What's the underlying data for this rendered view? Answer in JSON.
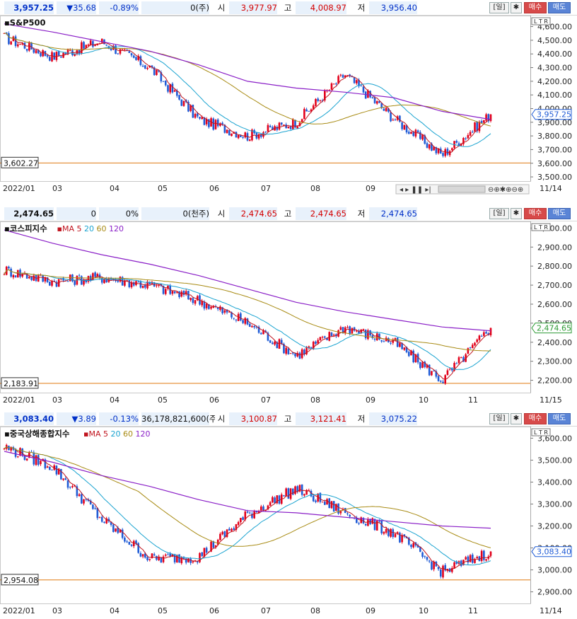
{
  "panels": [
    {
      "id": "sp500",
      "header": {
        "price": "3,957.25",
        "change": "▼35.68",
        "change_pct": "-0.89%",
        "volume": "0(주)",
        "open_label": "시",
        "open": "3,977.97",
        "high_label": "고",
        "high": "4,008.97",
        "low_label": "저",
        "low": "3,956.40",
        "period": "[일]",
        "buy": "매수",
        "sell": "매도"
      },
      "chart_label": "S&P500",
      "ma_legend": null,
      "ltr": "L T R",
      "last_price_tag": "3,957.25",
      "support_tag": "3,602.27",
      "date_end": "11/14",
      "x_months": [
        "2022/01",
        "03",
        "04",
        "05",
        "06",
        "07",
        "08",
        "09",
        "10",
        "11"
      ],
      "y_ticks": [
        "4,600.00",
        "4,500.00",
        "4,400.00",
        "4,300.00",
        "4,200.00",
        "4,100.00",
        "4,000.00",
        "3,900.00",
        "3,800.00",
        "3,700.00",
        "3,600.00",
        "3,500.00"
      ]
    },
    {
      "id": "kospi",
      "header": {
        "price": "2,474.65",
        "change": "0",
        "change_pct": "0%",
        "volume": "0(천주)",
        "open_label": "시",
        "open": "2,474.65",
        "high_label": "고",
        "high": "2,474.65",
        "low_label": "저",
        "low": "2,474.65",
        "period": "[일]",
        "buy": "매수",
        "sell": "매도"
      },
      "chart_label": "코스피지수",
      "ma_legend": {
        "title": "MA",
        "items": [
          "5",
          "20",
          "60",
          "120"
        ]
      },
      "ltr": "L T R",
      "last_price_tag": "2,474.65",
      "support_tag": "2,183.91",
      "date_end": "11/15",
      "x_months": [
        "2022/01",
        "03",
        "04",
        "05",
        "06",
        "07",
        "08",
        "09",
        "10",
        "11"
      ],
      "y_ticks": [
        "3,000.00",
        "2,900.00",
        "2,800.00",
        "2,700.00",
        "2,600.00",
        "2,500.00",
        "2,400.00",
        "2,300.00",
        "2,200.00"
      ]
    },
    {
      "id": "shanghai",
      "header": {
        "price": "3,083.40",
        "change": "▼3.89",
        "change_pct": "-0.13%",
        "volume": "36,178,821,600(주)",
        "open_label": "시",
        "open": "3,100.87",
        "high_label": "고",
        "high": "3,121.41",
        "low_label": "저",
        "low": "3,075.22",
        "period": "[일]",
        "buy": "매수",
        "sell": "매도"
      },
      "chart_label": "중국상해종합지수",
      "ma_legend": {
        "title": "MA",
        "items": [
          "5",
          "20",
          "60",
          "120"
        ]
      },
      "ltr": "L T R",
      "last_price_tag": "3,083.40",
      "support_tag": "2,954.08",
      "date_end": "11/14",
      "x_months": [
        "2022/01",
        "03",
        "04",
        "05",
        "06",
        "07",
        "08",
        "09",
        "10",
        "11"
      ],
      "y_ticks": [
        "3,600.00",
        "3,500.00",
        "3,400.00",
        "3,300.00",
        "3,200.00",
        "3,100.00",
        "3,000.00",
        "2,900.00"
      ]
    }
  ],
  "colors": {
    "up": "#e3001b",
    "down": "#1f5bd6",
    "ma5": "#c0141e",
    "ma20": "#1aa3d0",
    "ma60": "#a88b14",
    "ma120": "#8a1fc7",
    "support": "#e07a10",
    "grid": "#d6d6d6"
  },
  "chart_data": [
    {
      "type": "candlestick",
      "title": "S&P500",
      "ylim": [
        3490,
        4660
      ],
      "x": [
        "2022-01",
        "2022-02",
        "2022-03",
        "2022-04",
        "2022-05",
        "2022-06",
        "2022-07",
        "2022-08",
        "2022-09",
        "2022-10",
        "2022-11"
      ],
      "series": [
        {
          "name": "close",
          "values": [
            4520,
            4380,
            4490,
            4300,
            3920,
            3800,
            3900,
            4250,
            3930,
            3660,
            3957.25
          ]
        },
        {
          "name": "MA 120",
          "values": [
            4620,
            4560,
            4490,
            4420,
            4320,
            4200,
            4150,
            4120,
            4080,
            3980,
            3920
          ]
        }
      ],
      "support_line": 3602.27,
      "last": 3957.25
    },
    {
      "type": "candlestick",
      "title": "코스피지수",
      "ylim": [
        2150,
        3020
      ],
      "x": [
        "2022-01",
        "2022-02",
        "2022-03",
        "2022-04",
        "2022-05",
        "2022-06",
        "2022-07",
        "2022-08",
        "2022-09",
        "2022-10",
        "2022-11"
      ],
      "series": [
        {
          "name": "close",
          "values": [
            2780,
            2720,
            2740,
            2700,
            2620,
            2500,
            2330,
            2480,
            2400,
            2200,
            2474.65
          ]
        },
        {
          "name": "MA 120",
          "values": [
            2990,
            2920,
            2860,
            2810,
            2750,
            2680,
            2610,
            2560,
            2520,
            2480,
            2460
          ]
        }
      ],
      "support_line": 2183.91,
      "last": 2474.65
    },
    {
      "type": "candlestick",
      "title": "중국상해종합지수",
      "ylim": [
        2860,
        3640
      ],
      "x": [
        "2022-01",
        "2022-02",
        "2022-03",
        "2022-04",
        "2022-05",
        "2022-06",
        "2022-07",
        "2022-08",
        "2022-09",
        "2022-10",
        "2022-11"
      ],
      "series": [
        {
          "name": "close",
          "values": [
            3560,
            3470,
            3230,
            3050,
            3060,
            3250,
            3370,
            3260,
            3170,
            2990,
            3083.4
          ]
        },
        {
          "name": "MA 120",
          "values": [
            3540,
            3490,
            3430,
            3380,
            3320,
            3270,
            3260,
            3240,
            3220,
            3200,
            3190
          ]
        }
      ],
      "support_line": 2954.08,
      "last": 3083.4
    }
  ]
}
